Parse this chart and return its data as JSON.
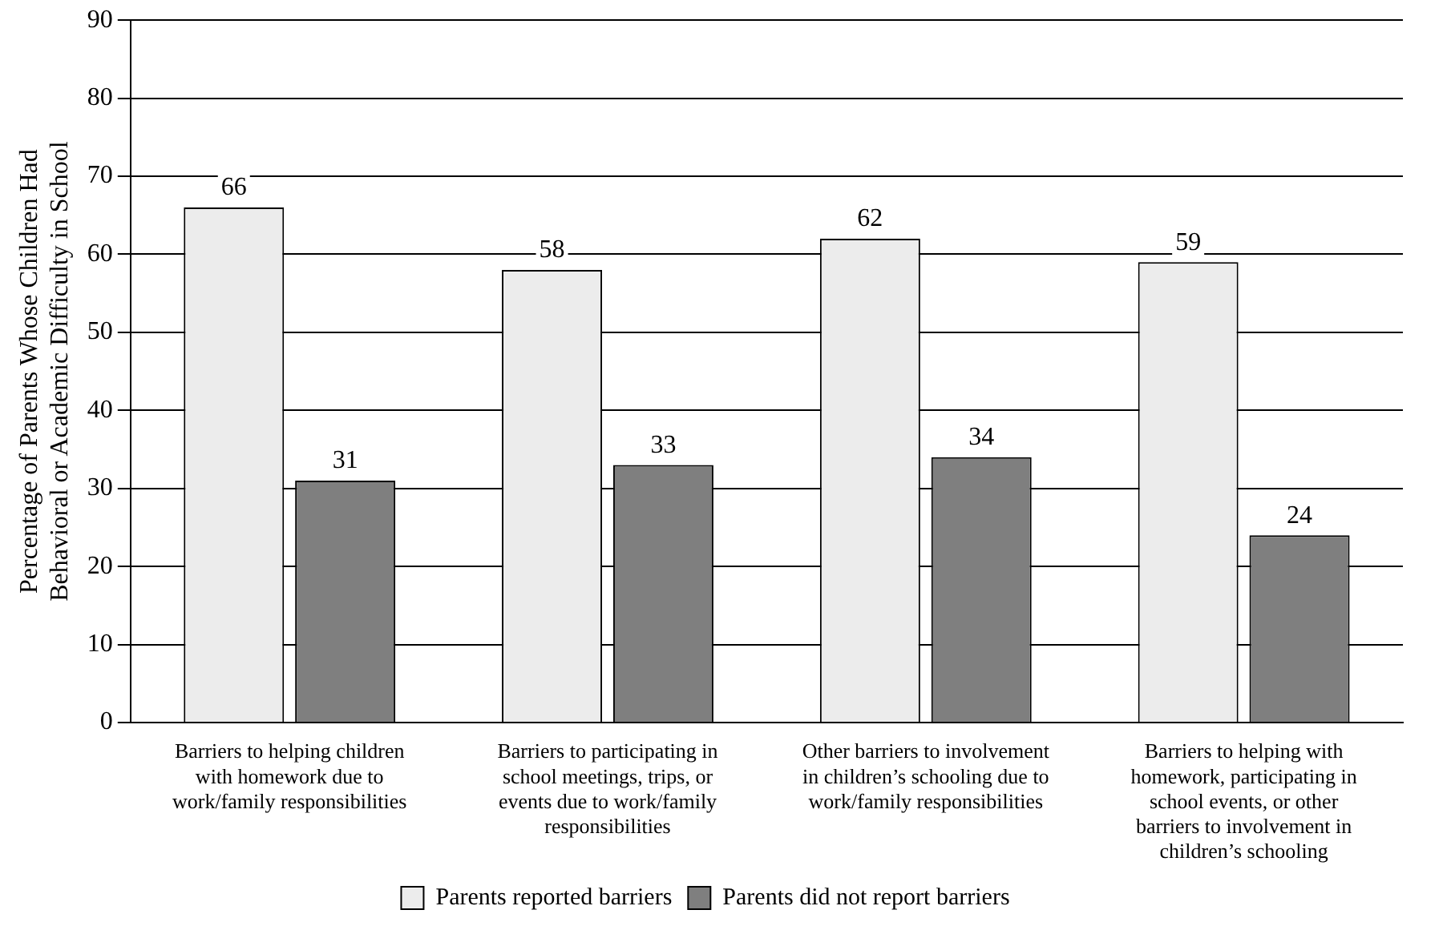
{
  "chart_data": {
    "type": "bar",
    "ylabel": "Percentage of Parents Whose Children Had Behavioral or Academic Difficulty in School",
    "categories": [
      "Barriers to helping children with homework due to work/family responsibilities",
      "Barriers to participating in school meetings, trips, or events due to work/family responsibilities",
      "Other barriers to involvement in children’s schooling due to work/family responsibilities",
      "Barriers to helping with homework, participating in school events, or other barriers to involvement in children’s schooling"
    ],
    "series": [
      {
        "name": "Parents reported barriers",
        "color": "#ececec",
        "values": [
          66,
          58,
          62,
          59
        ]
      },
      {
        "name": "Parents did not report barriers",
        "color": "#7f7f7f",
        "values": [
          31,
          33,
          34,
          24
        ]
      }
    ],
    "ylim": [
      0,
      90
    ],
    "yticks": [
      0,
      10,
      20,
      30,
      40,
      50,
      60,
      70,
      80,
      90
    ],
    "grid": "y",
    "legend": "bottom",
    "data_labels": true
  }
}
